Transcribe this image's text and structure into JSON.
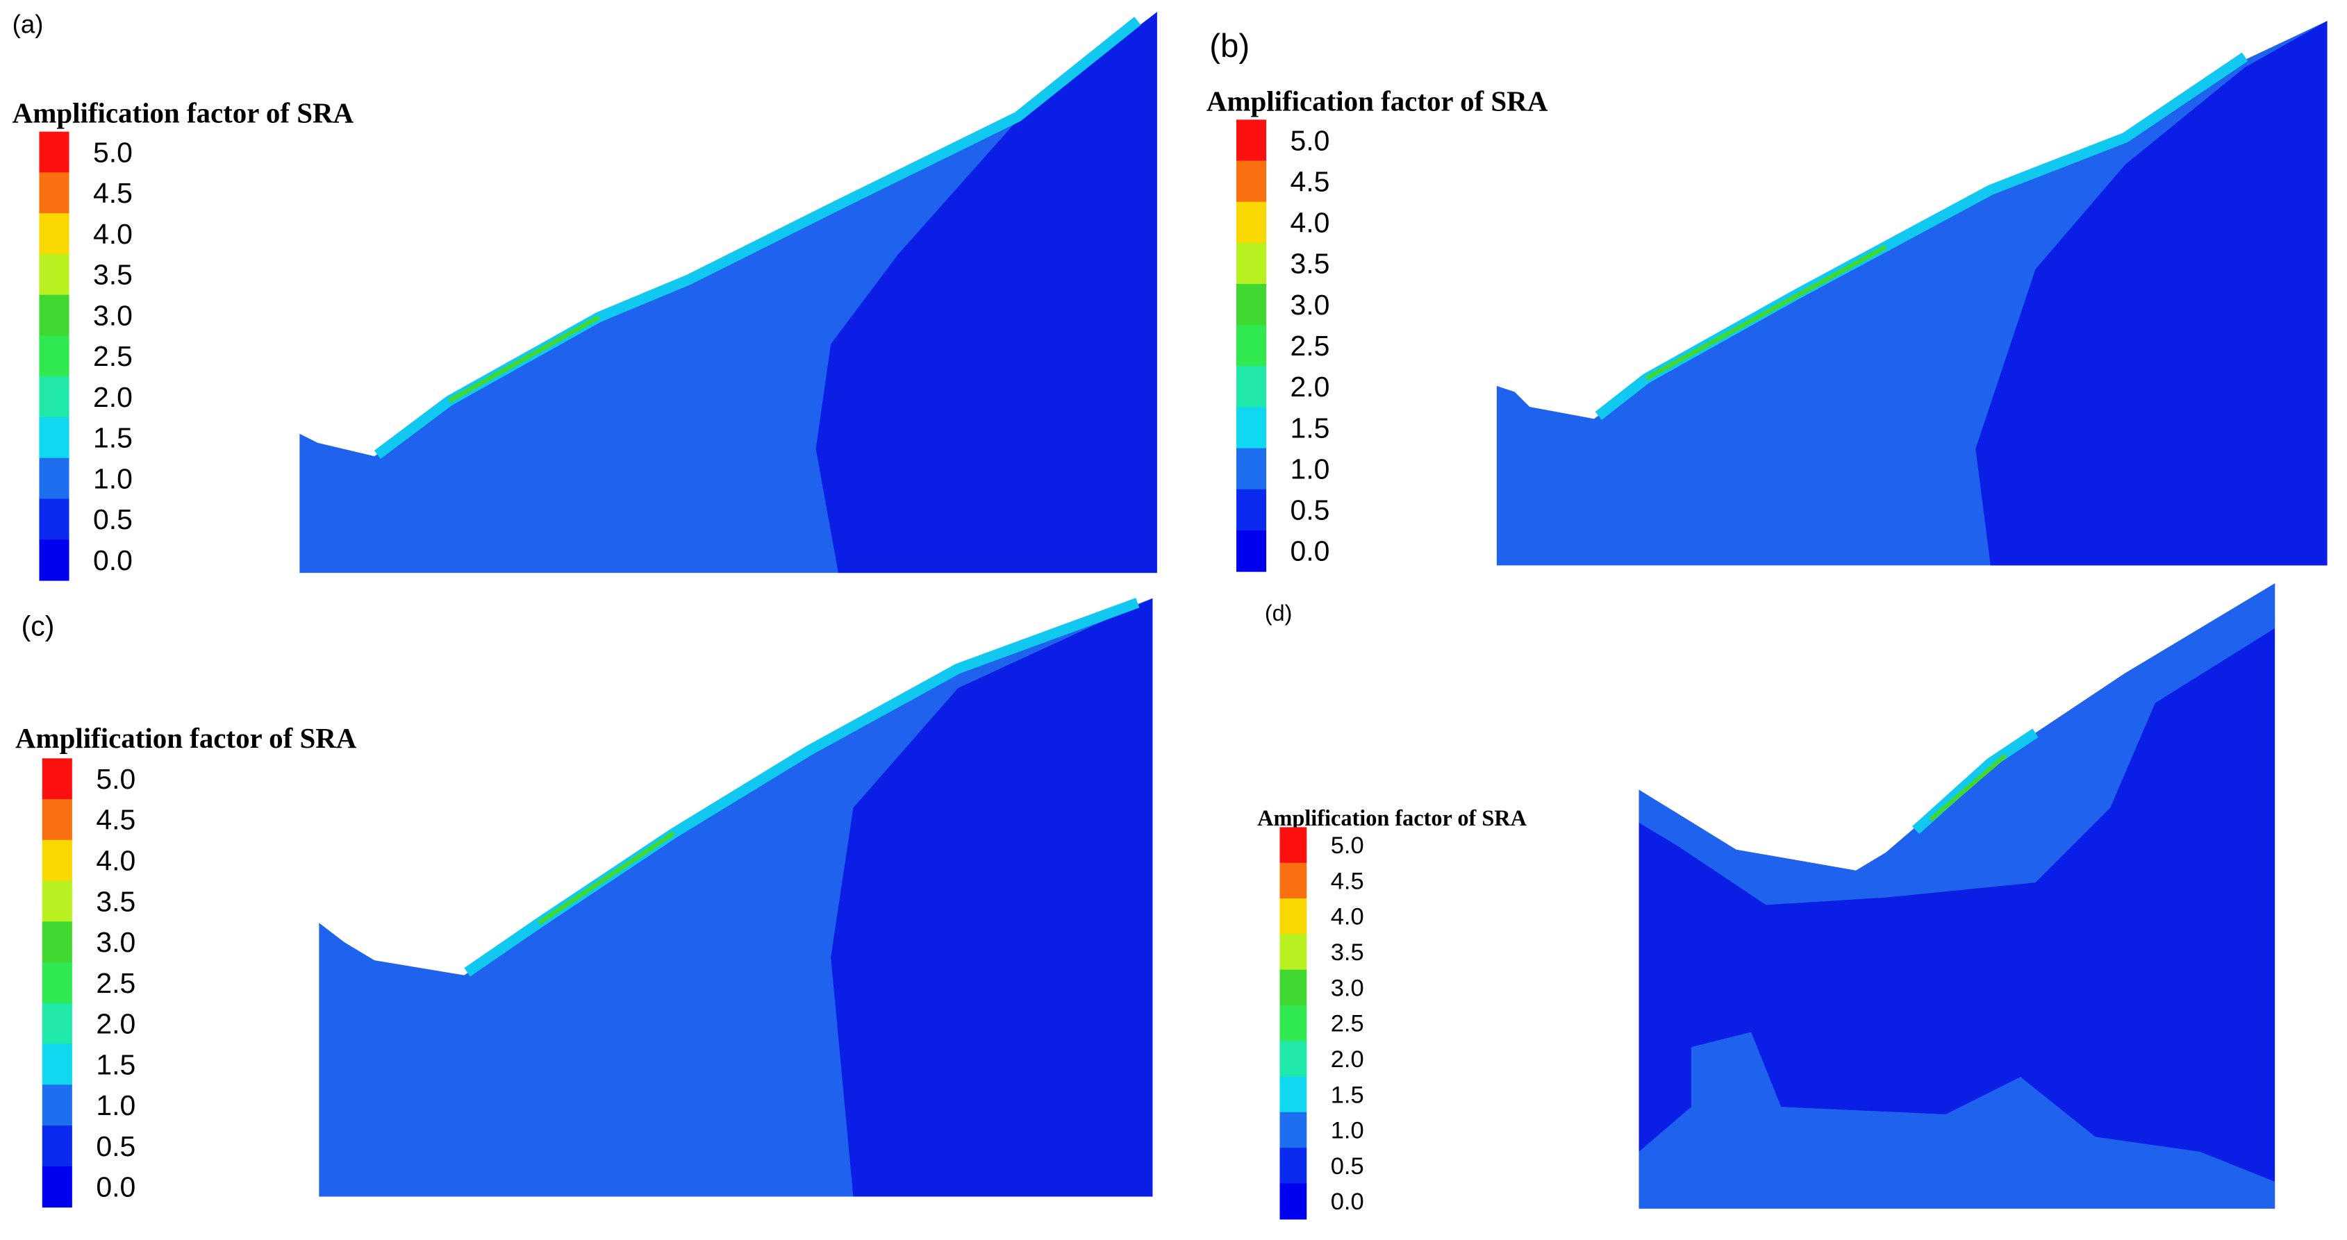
{
  "panels": [
    {
      "label": "(a)",
      "legend_title": "Amplification factor of SRA",
      "ticks": [
        "5.0",
        "4.5",
        "4.0",
        "3.5",
        "3.0",
        "2.5",
        "2.0",
        "1.5",
        "1.0",
        "0.5",
        "0.0"
      ]
    },
    {
      "label": "(b)",
      "legend_title": "Amplification factor of SRA",
      "ticks": [
        "5.0",
        "4.5",
        "4.0",
        "3.5",
        "3.0",
        "2.5",
        "2.0",
        "1.5",
        "1.0",
        "0.5",
        "0.0"
      ]
    },
    {
      "label": "(c)",
      "legend_title": "Amplification factor of SRA",
      "ticks": [
        "5.0",
        "4.5",
        "4.0",
        "3.5",
        "3.0",
        "2.5",
        "2.0",
        "1.5",
        "1.0",
        "0.5",
        "0.0"
      ]
    },
    {
      "label": "(d)",
      "legend_title": "Amplification factor of SRA",
      "ticks": [
        "5.0",
        "4.5",
        "4.0",
        "3.5",
        "3.0",
        "2.5",
        "2.0",
        "1.5",
        "1.0",
        "0.5",
        "0.0"
      ]
    }
  ],
  "colorbar_colors": [
    "#ff1010",
    "#f87010",
    "#f8d800",
    "#b8f020",
    "#40d830",
    "#30e850",
    "#20e8a8",
    "#10d8f0",
    "#1e6ef0",
    "#0a2af0",
    "#0000f0"
  ]
}
